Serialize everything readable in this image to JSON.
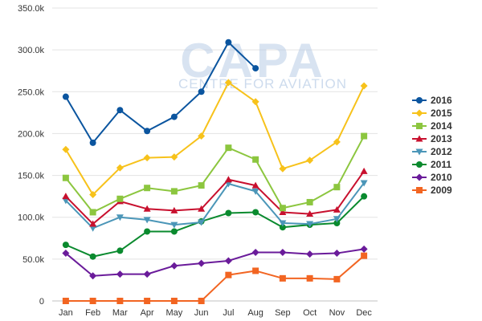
{
  "watermark": {
    "main": "CAPA",
    "sub": "CENTRE FOR AVIATION"
  },
  "chart_data": {
    "type": "line",
    "title": "",
    "xlabel": "",
    "ylabel": "",
    "categories": [
      "Jan",
      "Feb",
      "Mar",
      "Apr",
      "May",
      "Jun",
      "Jul",
      "Aug",
      "Sep",
      "Oct",
      "Nov",
      "Dec"
    ],
    "ylim": [
      0,
      350000
    ],
    "yticks": [
      0,
      50000,
      100000,
      150000,
      200000,
      250000,
      300000,
      350000
    ],
    "ytick_labels": [
      "0",
      "50.0k",
      "100.0k",
      "150.0k",
      "200.0k",
      "250.0k",
      "300.0k",
      "350.0k"
    ],
    "grid": true,
    "legend": "right",
    "series": [
      {
        "name": "2016",
        "color": "#0b559f",
        "marker": "circle",
        "values": [
          244000,
          189000,
          228000,
          203000,
          220000,
          250000,
          309000,
          278000,
          null,
          null,
          null,
          null
        ]
      },
      {
        "name": "2015",
        "color": "#f7c21b",
        "marker": "diamond",
        "values": [
          181000,
          127000,
          159000,
          171000,
          172000,
          197000,
          261000,
          238000,
          158000,
          168000,
          190000,
          257000
        ]
      },
      {
        "name": "2014",
        "color": "#8cc63f",
        "marker": "square",
        "values": [
          147000,
          106000,
          122000,
          135000,
          131000,
          138000,
          183000,
          169000,
          111000,
          118000,
          136000,
          197000
        ]
      },
      {
        "name": "2013",
        "color": "#c8102e",
        "marker": "triangle",
        "values": [
          125000,
          92000,
          119000,
          110000,
          108000,
          110000,
          145000,
          138000,
          106000,
          104000,
          109000,
          155000
        ]
      },
      {
        "name": "2012",
        "color": "#4b96b8",
        "marker": "triangle-down",
        "values": [
          120000,
          87000,
          100000,
          97000,
          91000,
          94000,
          140000,
          131000,
          93000,
          92000,
          98000,
          141000
        ]
      },
      {
        "name": "2011",
        "color": "#0a8a2e",
        "marker": "circle",
        "values": [
          67000,
          53000,
          60000,
          83000,
          83000,
          95000,
          105000,
          106000,
          88000,
          91000,
          93000,
          125000
        ]
      },
      {
        "name": "2010",
        "color": "#6a1b9a",
        "marker": "diamond",
        "values": [
          57000,
          30000,
          32000,
          32000,
          42000,
          45000,
          48000,
          58000,
          58000,
          56000,
          57000,
          62000
        ]
      },
      {
        "name": "2009",
        "color": "#f26522",
        "marker": "square",
        "values": [
          0,
          0,
          0,
          0,
          0,
          0,
          31000,
          36000,
          27000,
          27000,
          26000,
          54000
        ]
      }
    ]
  }
}
